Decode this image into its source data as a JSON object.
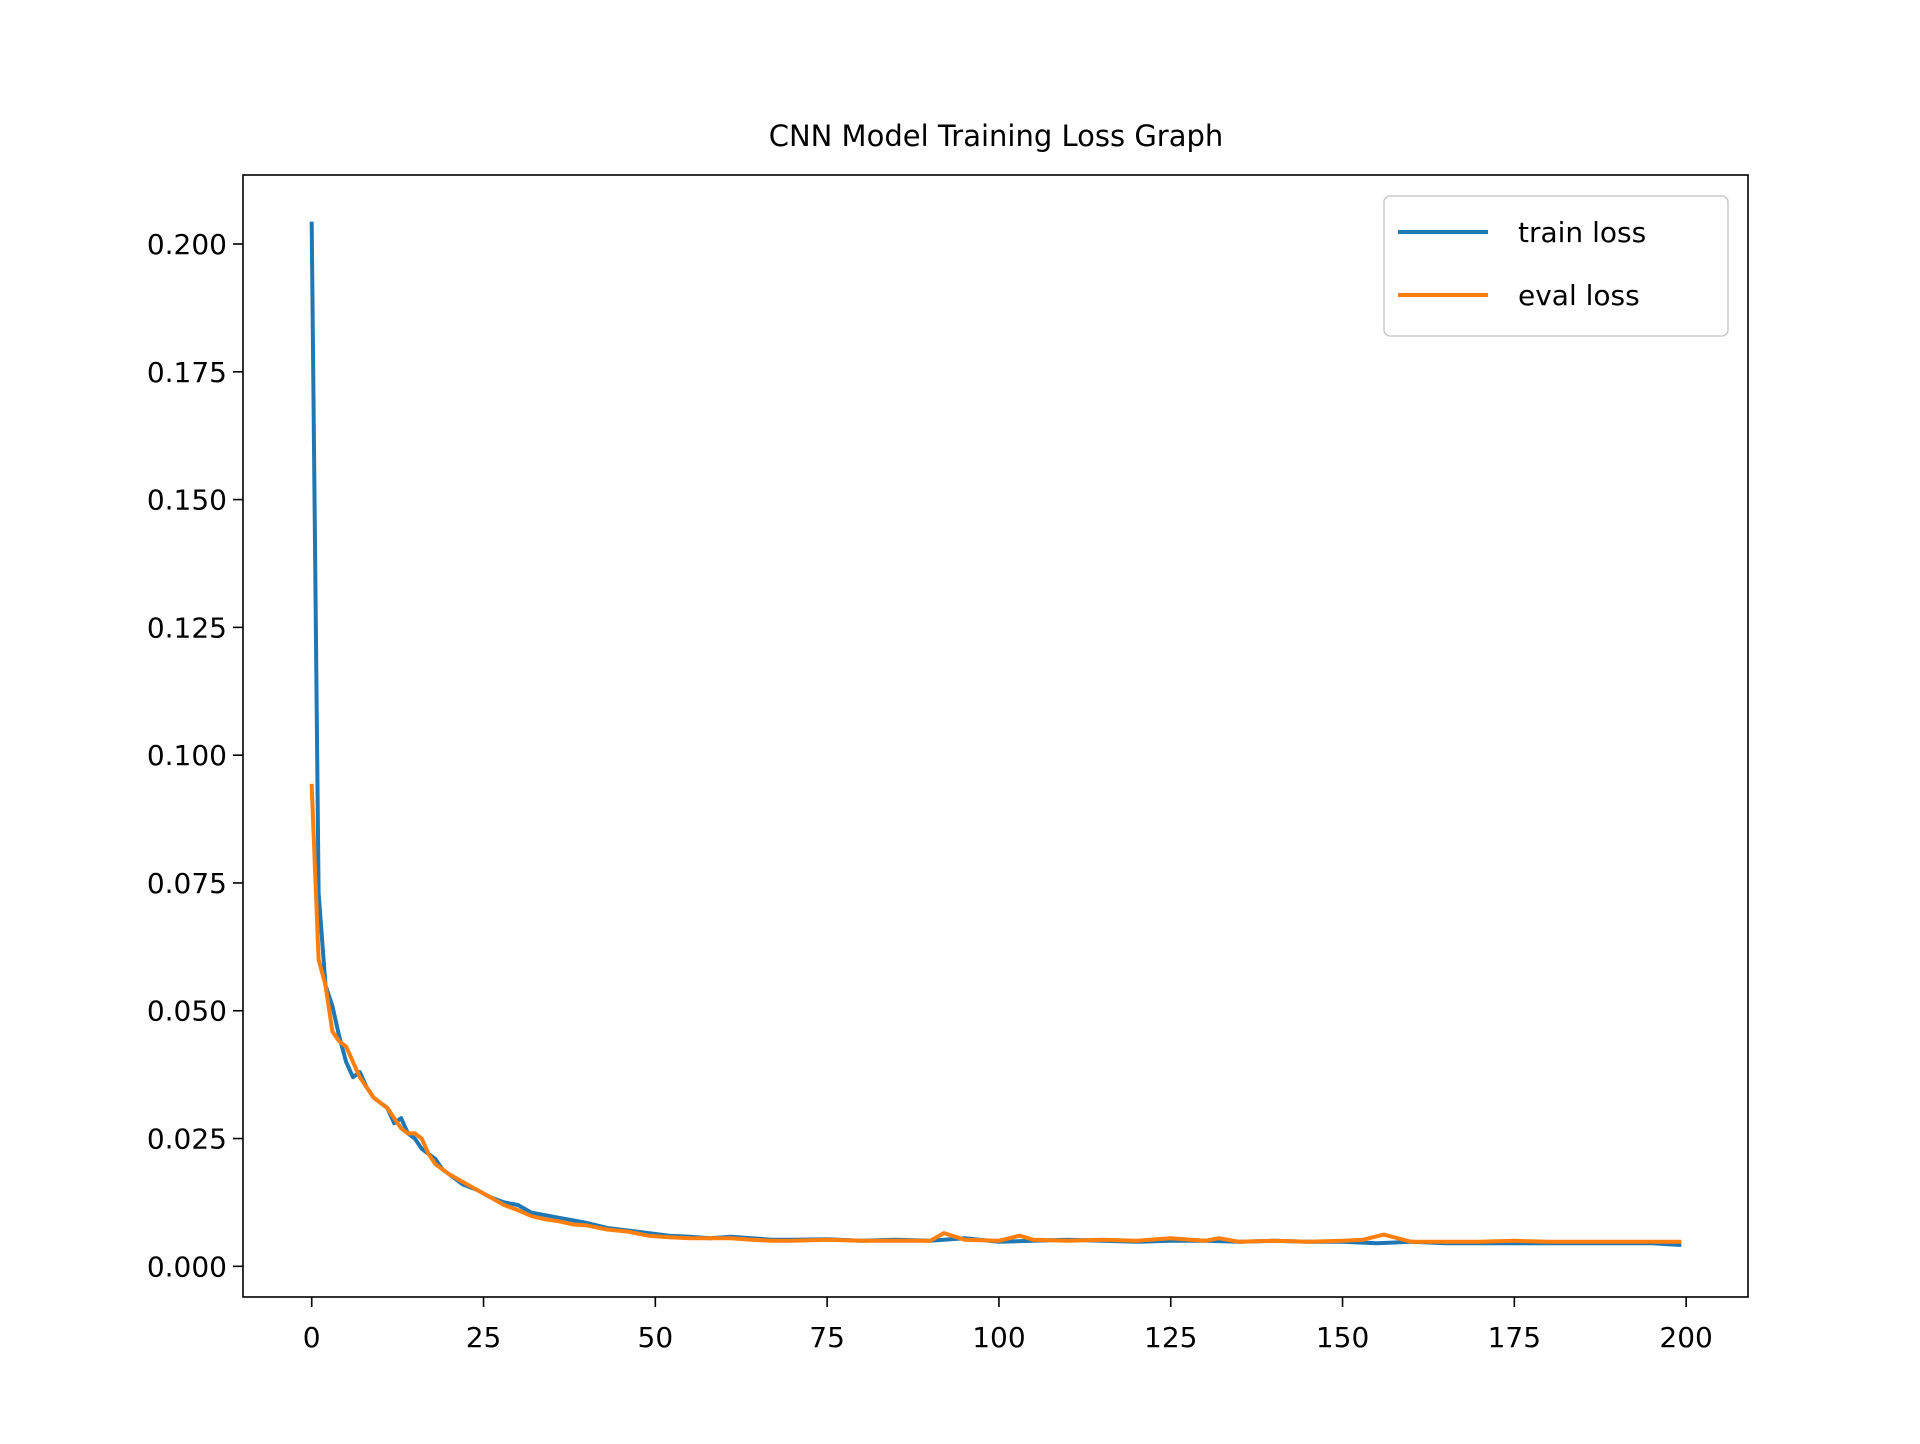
{
  "chart_data": {
    "type": "line",
    "title": "CNN Model Training Loss Graph",
    "xlabel": "",
    "ylabel": "",
    "xlim": [
      -10,
      209
    ],
    "ylim": [
      -0.006,
      0.2135
    ],
    "xticks": [
      0,
      25,
      50,
      75,
      100,
      125,
      150,
      175,
      200
    ],
    "xtick_labels": [
      "0",
      "25",
      "50",
      "75",
      "100",
      "125",
      "150",
      "175",
      "200"
    ],
    "yticks": [
      0.0,
      0.025,
      0.05,
      0.075,
      0.1,
      0.125,
      0.15,
      0.175,
      0.2
    ],
    "ytick_labels": [
      "0.000",
      "0.025",
      "0.050",
      "0.075",
      "0.100",
      "0.125",
      "0.150",
      "0.175",
      "0.200"
    ],
    "grid": false,
    "legend_position": "top-right",
    "series": [
      {
        "name": "train loss",
        "color": "#1f77b4",
        "x": [
          0,
          1,
          2,
          3,
          4,
          5,
          6,
          7,
          8,
          9,
          10,
          11,
          12,
          13,
          14,
          15,
          16,
          17,
          18,
          19,
          20,
          22,
          24,
          26,
          28,
          30,
          32,
          34,
          36,
          38,
          40,
          43,
          46,
          49,
          52,
          55,
          58,
          61,
          64,
          67,
          70,
          75,
          80,
          85,
          90,
          95,
          100,
          105,
          110,
          115,
          120,
          125,
          130,
          135,
          140,
          145,
          150,
          155,
          160,
          165,
          170,
          175,
          180,
          185,
          190,
          195,
          199
        ],
        "values": [
          0.204,
          0.073,
          0.055,
          0.051,
          0.045,
          0.04,
          0.037,
          0.038,
          0.035,
          0.033,
          0.032,
          0.031,
          0.028,
          0.029,
          0.026,
          0.025,
          0.023,
          0.022,
          0.021,
          0.019,
          0.018,
          0.016,
          0.015,
          0.0135,
          0.0125,
          0.012,
          0.0105,
          0.01,
          0.0095,
          0.009,
          0.0085,
          0.0075,
          0.007,
          0.0065,
          0.006,
          0.0058,
          0.0055,
          0.0058,
          0.0055,
          0.0052,
          0.0052,
          0.0053,
          0.005,
          0.0052,
          0.005,
          0.0055,
          0.0048,
          0.005,
          0.0052,
          0.005,
          0.0048,
          0.005,
          0.005,
          0.0048,
          0.005,
          0.0048,
          0.0048,
          0.0045,
          0.0048,
          0.0045,
          0.0045,
          0.0045,
          0.0045,
          0.0045,
          0.0045,
          0.0045,
          0.0042
        ]
      },
      {
        "name": "eval loss",
        "color": "#ff7f0e",
        "x": [
          0,
          1,
          2,
          3,
          4,
          5,
          6,
          7,
          8,
          9,
          10,
          11,
          12,
          13,
          14,
          15,
          16,
          17,
          18,
          19,
          20,
          22,
          24,
          26,
          28,
          30,
          32,
          34,
          36,
          38,
          40,
          43,
          46,
          49,
          52,
          55,
          58,
          61,
          64,
          67,
          70,
          75,
          80,
          85,
          90,
          92,
          95,
          100,
          103,
          105,
          110,
          115,
          120,
          125,
          130,
          132,
          135,
          140,
          145,
          150,
          153,
          156,
          160,
          165,
          170,
          175,
          180,
          185,
          190,
          195,
          199
        ],
        "values": [
          0.094,
          0.06,
          0.055,
          0.046,
          0.044,
          0.043,
          0.04,
          0.037,
          0.035,
          0.033,
          0.032,
          0.031,
          0.029,
          0.027,
          0.026,
          0.026,
          0.025,
          0.022,
          0.02,
          0.019,
          0.018,
          0.0165,
          0.015,
          0.0135,
          0.012,
          0.011,
          0.0098,
          0.0092,
          0.0088,
          0.0082,
          0.008,
          0.0072,
          0.0068,
          0.006,
          0.0057,
          0.0055,
          0.0055,
          0.0055,
          0.0052,
          0.005,
          0.005,
          0.0052,
          0.005,
          0.005,
          0.005,
          0.0065,
          0.0052,
          0.005,
          0.006,
          0.0052,
          0.005,
          0.0052,
          0.005,
          0.0055,
          0.005,
          0.0055,
          0.0048,
          0.005,
          0.0048,
          0.005,
          0.0052,
          0.0062,
          0.0048,
          0.0048,
          0.0048,
          0.005,
          0.0048,
          0.0048,
          0.0048,
          0.0048,
          0.0048
        ]
      }
    ]
  }
}
